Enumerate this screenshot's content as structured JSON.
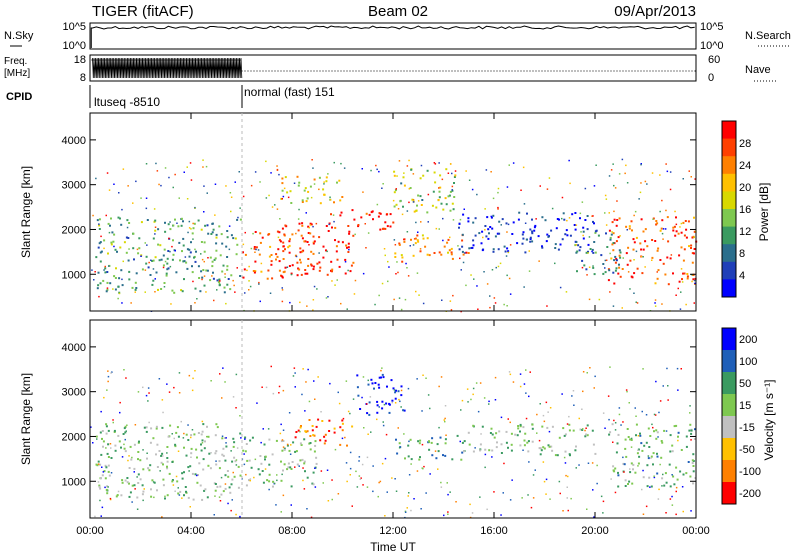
{
  "header": {
    "station": "TIGER (fitACF)",
    "beam": "Beam 02",
    "date": "09/Apr/2013"
  },
  "top_panels": {
    "nsky_label": "N.Sky",
    "nsearch_label": "N.Search",
    "freq_label_line1": "Freq.",
    "freq_label_line2": "[MHz]",
    "nave_label": "Nave",
    "cpid_label": "CPID",
    "noise_ticks": [
      "10^5",
      "10^0"
    ],
    "freq_ticks": [
      "18",
      "8"
    ],
    "nave_ticks": [
      "60",
      "0"
    ],
    "cpid_segments": [
      {
        "label": "ltuseq -8510"
      },
      {
        "label": "normal (fast) 151"
      }
    ]
  },
  "chart_data": [
    {
      "type": "heatmap",
      "title": "",
      "xlabel": "",
      "ylabel": "Slant Range [km]",
      "x_ticks": [
        "00:00",
        "04:00",
        "08:00",
        "12:00",
        "16:00",
        "20:00",
        "00:00"
      ],
      "y_ticks": [
        "1000",
        "2000",
        "3000",
        "4000"
      ],
      "ylim": [
        180,
        4600
      ],
      "xlim_hours": [
        0,
        24
      ],
      "colorbar": {
        "label": "Power [dB]",
        "ticks": [
          "4",
          "8",
          "12",
          "16",
          "20",
          "24",
          "28"
        ],
        "colors": [
          "#0000ff",
          "#1f3fb8",
          "#2a6e8c",
          "#3a9a60",
          "#7ec850",
          "#d8d800",
          "#ffc000",
          "#ff8000",
          "#ff4000",
          "#ff0000"
        ]
      },
      "regions": [
        {
          "t": [
            0.2,
            6.0
          ],
          "r": [
            600,
            2300
          ],
          "level": 0.35
        },
        {
          "t": [
            6.0,
            8.5
          ],
          "r": [
            900,
            2000
          ],
          "level": 0.85
        },
        {
          "t": [
            7.5,
            10.5
          ],
          "r": [
            1000,
            2200
          ],
          "level": 0.9
        },
        {
          "t": [
            7.5,
            10.0
          ],
          "r": [
            2600,
            3200
          ],
          "level": 0.6
        },
        {
          "t": [
            9.5,
            12.0
          ],
          "r": [
            2000,
            2500
          ],
          "level": 0.95
        },
        {
          "t": [
            12.0,
            15.0
          ],
          "r": [
            1300,
            1900
          ],
          "level": 0.75
        },
        {
          "t": [
            12.0,
            14.5
          ],
          "r": [
            2400,
            3400
          ],
          "level": 0.45
        },
        {
          "t": [
            14.5,
            20.0
          ],
          "r": [
            1500,
            2400
          ],
          "level": 0.1
        },
        {
          "t": [
            20.5,
            24.0
          ],
          "r": [
            800,
            2300
          ],
          "level": 0.85
        },
        {
          "t": [
            19.0,
            21.0
          ],
          "r": [
            1000,
            2000
          ],
          "level": 0.25
        }
      ]
    },
    {
      "type": "heatmap",
      "title": "",
      "xlabel": "Time UT",
      "ylabel": "Slant Range [km]",
      "x_ticks": [
        "00:00",
        "04:00",
        "08:00",
        "12:00",
        "16:00",
        "20:00",
        "00:00"
      ],
      "y_ticks": [
        "1000",
        "2000",
        "3000",
        "4000"
      ],
      "ylim": [
        180,
        4600
      ],
      "xlim_hours": [
        0,
        24
      ],
      "colorbar": {
        "label": "Velocity [m s⁻¹]",
        "ticks": [
          "200",
          "100",
          "50",
          "15",
          "-15",
          "-50",
          "-100",
          "-200"
        ],
        "colors": [
          "#0000ff",
          "#1f5fb8",
          "#3a9a60",
          "#7ec850",
          "#c0c0c0",
          "#ffc000",
          "#ff8000",
          "#ff0000"
        ]
      },
      "regions": [
        {
          "t": [
            0.2,
            6.0
          ],
          "r": [
            600,
            2300
          ],
          "level": 0.45
        },
        {
          "t": [
            6.0,
            9.0
          ],
          "r": [
            900,
            2000
          ],
          "level": 0.45
        },
        {
          "t": [
            8.0,
            10.5
          ],
          "r": [
            1800,
            2400
          ],
          "level": 0.85
        },
        {
          "t": [
            10.5,
            12.5
          ],
          "r": [
            2500,
            3400
          ],
          "level": 0.05
        },
        {
          "t": [
            12.0,
            15.0
          ],
          "r": [
            1500,
            2000
          ],
          "level": 0.3
        },
        {
          "t": [
            14.5,
            20.0
          ],
          "r": [
            1600,
            2300
          ],
          "level": 0.45
        },
        {
          "t": [
            20.5,
            24.0
          ],
          "r": [
            900,
            2300
          ],
          "level": 0.4
        }
      ]
    }
  ]
}
